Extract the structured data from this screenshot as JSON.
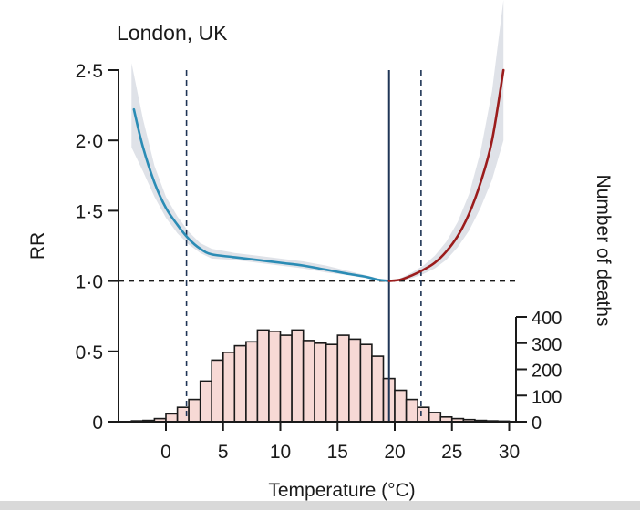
{
  "chart_data": {
    "type": "line",
    "title": "London, UK",
    "xlabel": "Temperature (°C)",
    "ylabel": "RR",
    "y2label": "Number of deaths",
    "xlim": [
      -3.5,
      30
    ],
    "ylim": [
      0,
      2.5
    ],
    "y2lim": [
      0,
      400
    ],
    "x_ticks": [
      0,
      5,
      10,
      15,
      20,
      25,
      30
    ],
    "x_tick_labels": [
      "0",
      "5",
      "10",
      "15",
      "20",
      "25",
      "30"
    ],
    "y_ticks": [
      0,
      0.5,
      1.0,
      1.5,
      2.0,
      2.5
    ],
    "y_tick_labels": [
      "0",
      "0·5",
      "1·0",
      "1·5",
      "2·0",
      "2·5"
    ],
    "y2_ticks": [
      0,
      100,
      200,
      300,
      400
    ],
    "y2_tick_labels": [
      "0",
      "100",
      "200",
      "300",
      "400"
    ],
    "reference_line_y": 1.0,
    "minimum_mortality_temperature": 19.5,
    "cold_threshold": 1.8,
    "heat_threshold": 22.3,
    "series": [
      {
        "role": "cold",
        "color": "#2b8cb5",
        "x": [
          -2.8,
          -2.0,
          -1.0,
          0.0,
          1.0,
          2.0,
          3.0,
          4.0,
          6.0,
          8.0,
          10.0,
          12.0,
          14.0,
          16.0,
          17.5,
          18.5,
          19.5
        ],
        "y": [
          2.22,
          1.95,
          1.7,
          1.52,
          1.4,
          1.3,
          1.23,
          1.19,
          1.17,
          1.15,
          1.13,
          1.11,
          1.08,
          1.05,
          1.03,
          1.01,
          1.0
        ]
      },
      {
        "role": "heat",
        "color": "#9b1c1c",
        "x": [
          19.5,
          20.5,
          21.5,
          22.5,
          23.5,
          24.5,
          25.5,
          26.5,
          27.5,
          28.5,
          29.5
        ],
        "y": [
          1.0,
          1.01,
          1.04,
          1.08,
          1.13,
          1.21,
          1.32,
          1.48,
          1.7,
          2.0,
          2.5
        ]
      }
    ],
    "confidence_band": {
      "color": "#dfe2e8",
      "x": [
        -3.0,
        -2.0,
        -1.0,
        0.0,
        1.0,
        2.0,
        3.0,
        4.0,
        6.0,
        8.0,
        10.0,
        12.0,
        14.0,
        16.0,
        17.5,
        18.5,
        19.5,
        20.5,
        21.5,
        22.5,
        23.5,
        24.5,
        25.5,
        26.5,
        27.5,
        28.5,
        29.5
      ],
      "lower": [
        1.95,
        1.78,
        1.6,
        1.45,
        1.34,
        1.26,
        1.2,
        1.16,
        1.15,
        1.13,
        1.11,
        1.09,
        1.06,
        1.04,
        1.02,
        1.005,
        1.0,
        1.0,
        1.02,
        1.05,
        1.09,
        1.15,
        1.24,
        1.36,
        1.52,
        1.72,
        2.0
      ],
      "upper": [
        2.55,
        2.15,
        1.82,
        1.6,
        1.46,
        1.35,
        1.27,
        1.23,
        1.2,
        1.18,
        1.16,
        1.14,
        1.11,
        1.07,
        1.04,
        1.02,
        1.0,
        1.02,
        1.06,
        1.11,
        1.18,
        1.28,
        1.42,
        1.62,
        1.92,
        2.35,
        3.1
      ]
    },
    "histogram": {
      "fill": "#f7d9d5",
      "stroke": "#1a1a1a",
      "bin_edges": [
        -3,
        -2,
        -1,
        0,
        1,
        2,
        3,
        4,
        5,
        6,
        7,
        8,
        9,
        10,
        11,
        12,
        13,
        14,
        15,
        16,
        17,
        18,
        19,
        20,
        21,
        22,
        23,
        24,
        25,
        26,
        27,
        28,
        29,
        30
      ],
      "counts": [
        3,
        5,
        12,
        30,
        55,
        85,
        155,
        235,
        265,
        290,
        305,
        350,
        345,
        330,
        350,
        310,
        300,
        295,
        330,
        315,
        295,
        250,
        165,
        120,
        85,
        55,
        35,
        18,
        12,
        8,
        5,
        3,
        2
      ]
    }
  }
}
